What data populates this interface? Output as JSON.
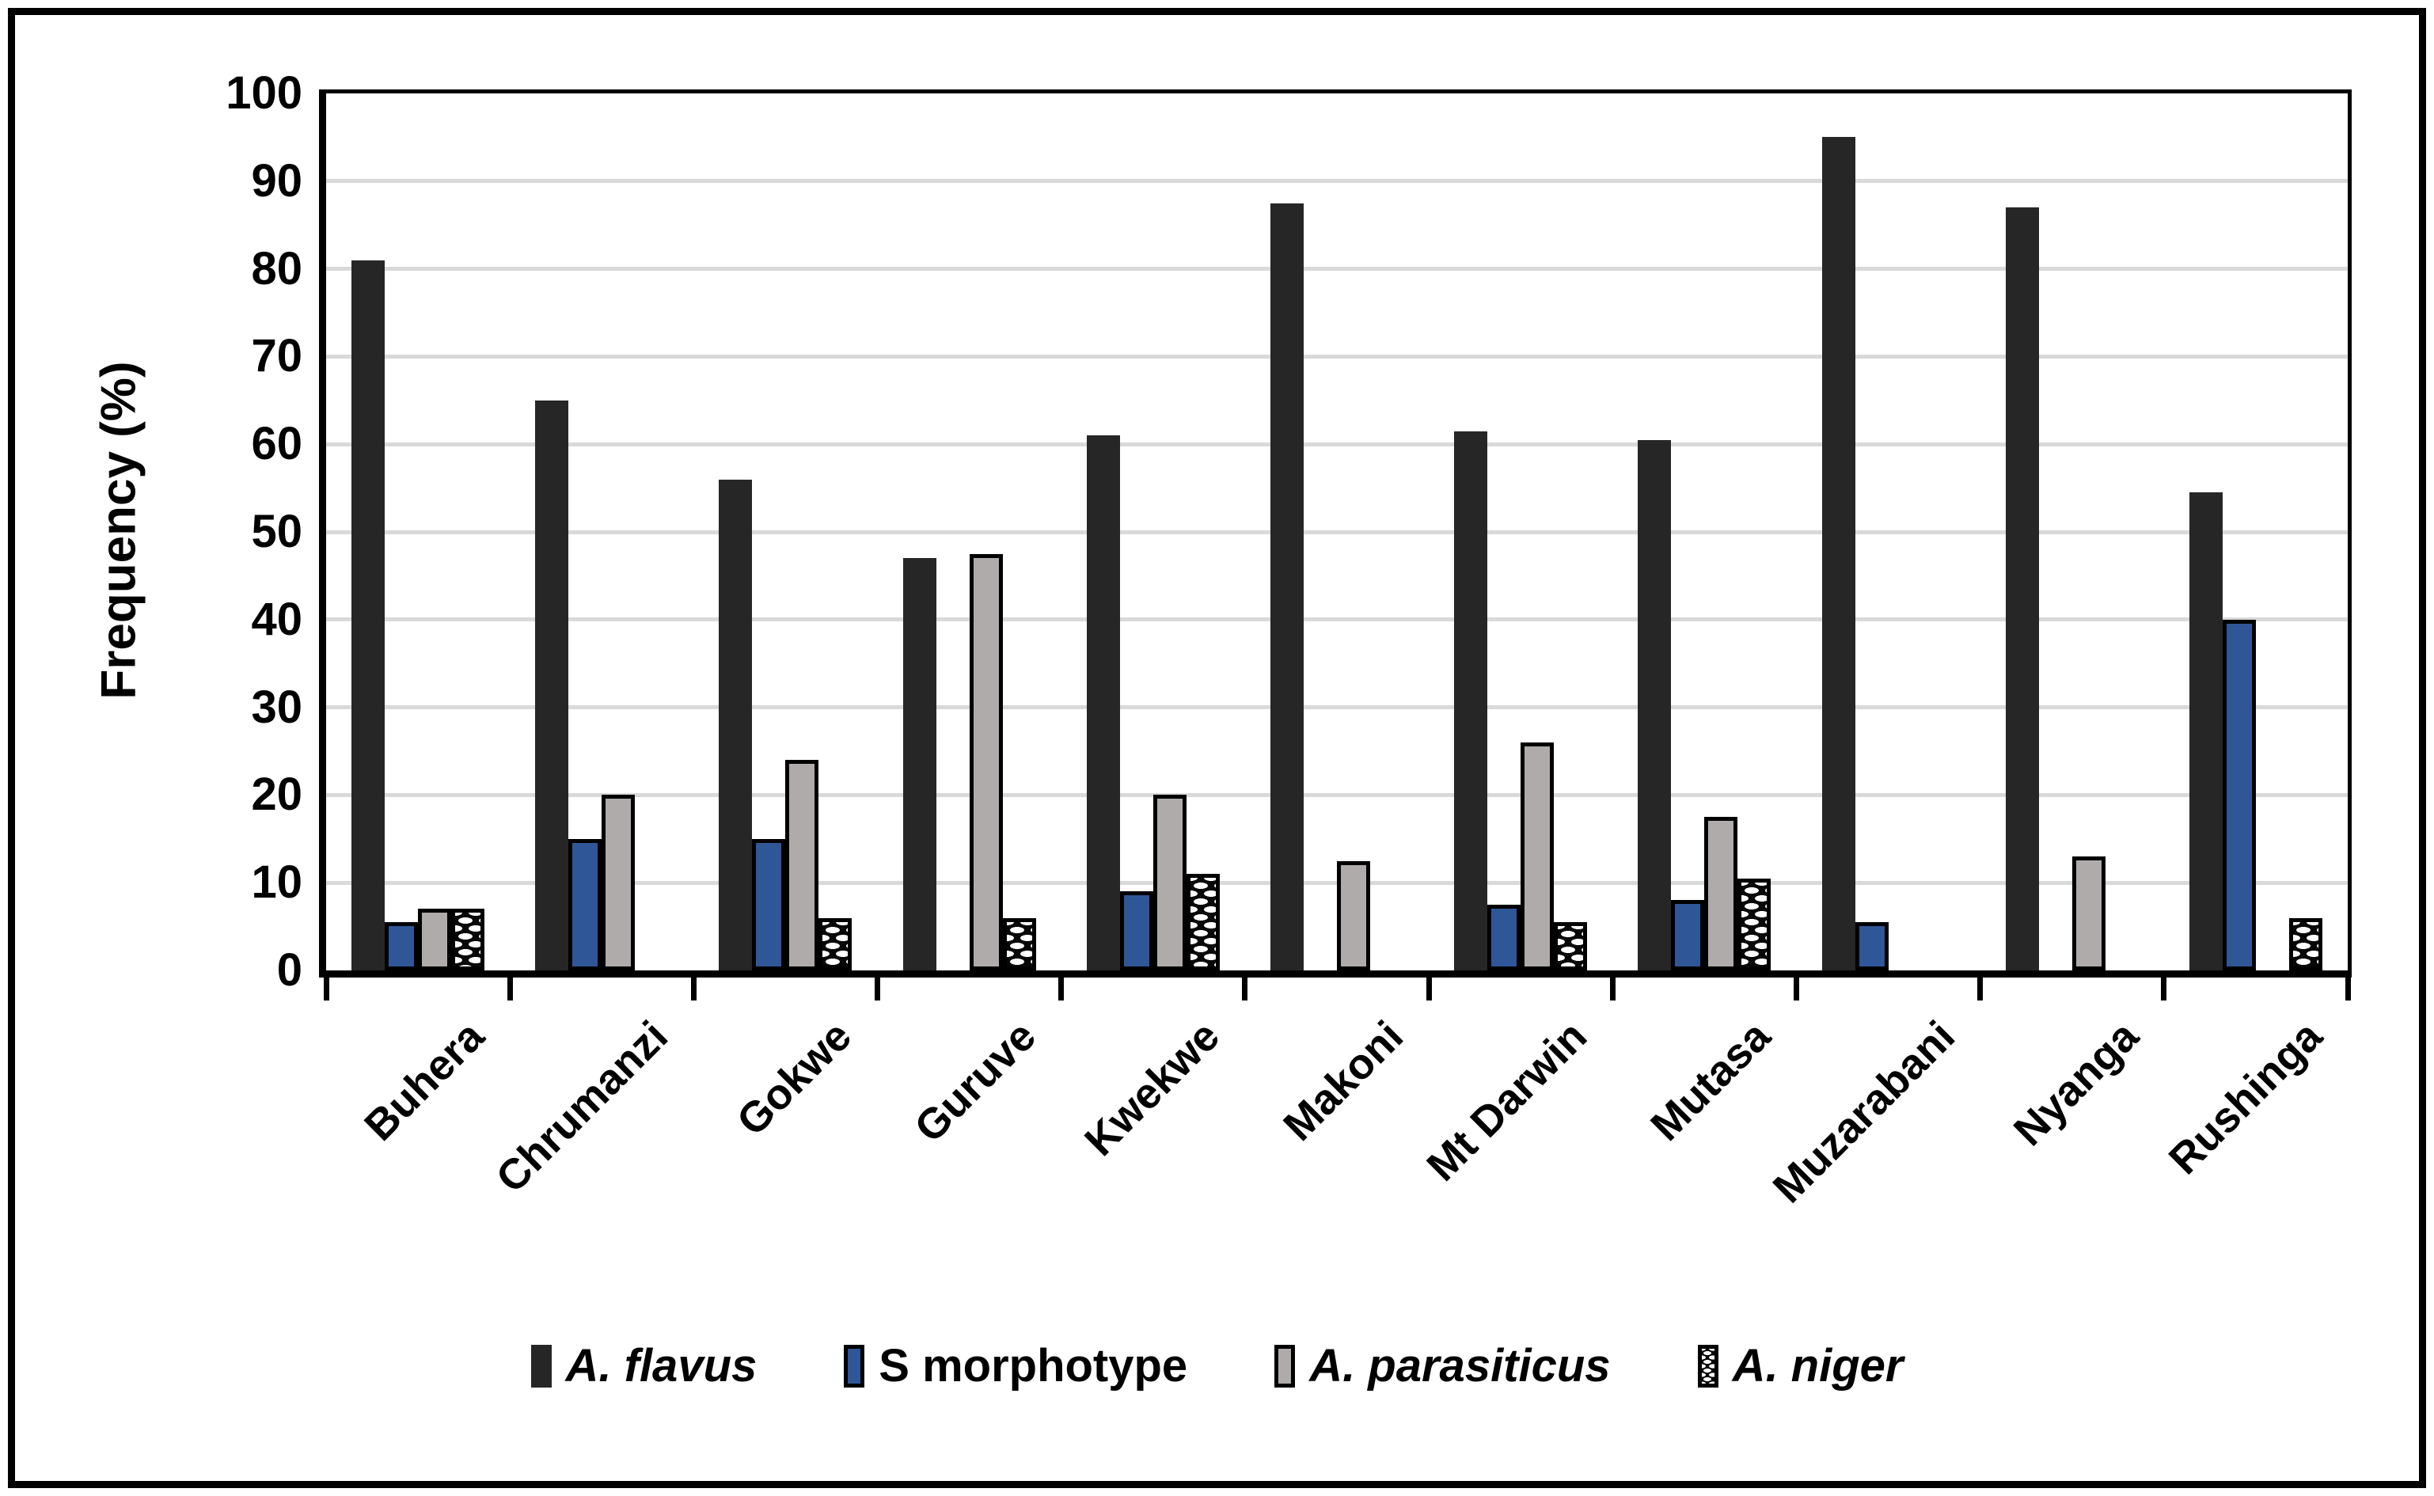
{
  "chart_data": {
    "type": "bar",
    "title": "",
    "xlabel": "",
    "ylabel": "Frequency (%)",
    "ylim": [
      0,
      100
    ],
    "ytick_step": 10,
    "yticks": [
      0,
      10,
      20,
      30,
      40,
      50,
      60,
      70,
      80,
      90,
      100
    ],
    "grid": true,
    "gridline_color": "#D9D9D9",
    "legend_position": "bottom",
    "background_color": "#FFFFFF",
    "frame_color": "#000000",
    "categories": [
      "Buhera",
      "Chrumanzi",
      "Gokwe",
      "Guruve",
      "Kwekwe",
      "Makoni",
      "Mt Darwin",
      "Mutasa",
      "Muzarabani",
      "Nyanga",
      "Rushinga"
    ],
    "series": [
      {
        "name": "A. flavus",
        "italic": true,
        "color": "#262626",
        "pattern": "solid",
        "outlined": false,
        "values": [
          81,
          65,
          56,
          47,
          61,
          87.5,
          61.5,
          60.5,
          95,
          87,
          54.5
        ]
      },
      {
        "name": "S morphotype",
        "italic": false,
        "color": "#2F5797",
        "pattern": "solid",
        "outlined": true,
        "values": [
          5.5,
          15,
          15,
          null,
          9,
          null,
          7.5,
          8,
          5.5,
          null,
          40
        ]
      },
      {
        "name": "A. parasiticus",
        "italic": true,
        "color": "#AFABAB",
        "pattern": "solid",
        "outlined": true,
        "values": [
          7,
          20,
          24,
          47.5,
          20,
          12.5,
          26,
          17.5,
          null,
          13,
          null
        ]
      },
      {
        "name": "A. niger",
        "italic": true,
        "color": "#080808",
        "pattern": "checker",
        "outlined": true,
        "values": [
          7,
          null,
          6,
          6,
          11,
          null,
          5.5,
          10.5,
          null,
          null,
          6
        ]
      }
    ]
  }
}
